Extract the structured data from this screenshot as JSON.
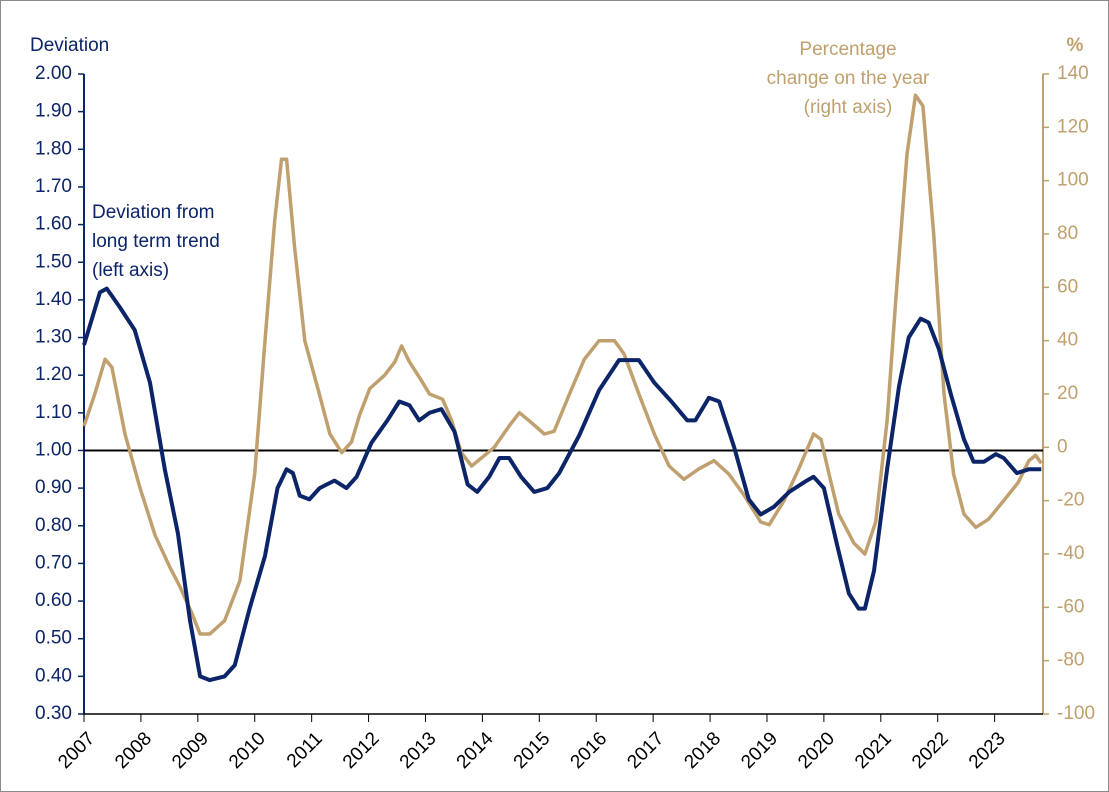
{
  "chart_data": {
    "type": "line",
    "ylabel": "Deviation",
    "y2label": "%",
    "annotations": [
      {
        "lines": [
          "Deviation from",
          "long term trend",
          "(left axis)"
        ],
        "color": "#0c2468"
      },
      {
        "lines": [
          "Percentage",
          "change on the year",
          "(right axis)"
        ],
        "color": "#bfa06e"
      }
    ],
    "xlim": [
      2007,
      2023.85
    ],
    "xticks": [
      2007,
      2008,
      2009,
      2010,
      2011,
      2012,
      2013,
      2014,
      2015,
      2016,
      2017,
      2018,
      2019,
      2020,
      2021,
      2022,
      2023
    ],
    "ylim": [
      0.3,
      2.0
    ],
    "yticks": [
      {
        "value": 0.3,
        "label": "0.30"
      },
      {
        "value": 0.4,
        "label": "0.40"
      },
      {
        "value": 0.5,
        "label": "0.50"
      },
      {
        "value": 0.6,
        "label": "0.60"
      },
      {
        "value": 0.7,
        "label": "0.70"
      },
      {
        "value": 0.8,
        "label": "0.80"
      },
      {
        "value": 0.9,
        "label": "0.90"
      },
      {
        "value": 1.0,
        "label": "1.00"
      },
      {
        "value": 1.1,
        "label": "1.10"
      },
      {
        "value": 1.2,
        "label": "1.20"
      },
      {
        "value": 1.3,
        "label": "1.30"
      },
      {
        "value": 1.4,
        "label": "1.40"
      },
      {
        "value": 1.5,
        "label": "1.50"
      },
      {
        "value": 1.6,
        "label": "1.60"
      },
      {
        "value": 1.7,
        "label": "1.70"
      },
      {
        "value": 1.8,
        "label": "1.80"
      },
      {
        "value": 1.9,
        "label": "1.90"
      },
      {
        "value": 2.0,
        "label": "2.00"
      }
    ],
    "y2lim": [
      -100,
      140
    ],
    "y2ticks": [
      -100,
      -80,
      -60,
      -40,
      -20,
      0,
      20,
      40,
      60,
      80,
      100,
      120,
      140
    ],
    "hline": 1.0,
    "series": [
      {
        "name": "Deviation from long term trend",
        "color": "#0c2468",
        "axis": "y",
        "x": [
          2007.0,
          2007.28,
          2007.4,
          2007.63,
          2007.89,
          2008.16,
          2008.42,
          2008.65,
          2008.86,
          2009.04,
          2009.21,
          2009.47,
          2009.65,
          2009.91,
          2010.18,
          2010.4,
          2010.56,
          2010.67,
          2010.79,
          2010.96,
          2011.14,
          2011.4,
          2011.61,
          2011.79,
          2012.05,
          2012.33,
          2012.54,
          2012.72,
          2012.89,
          2013.07,
          2013.28,
          2013.51,
          2013.74,
          2013.91,
          2014.12,
          2014.3,
          2014.47,
          2014.68,
          2014.91,
          2015.14,
          2015.35,
          2015.7,
          2016.05,
          2016.4,
          2016.75,
          2017.02,
          2017.32,
          2017.6,
          2017.74,
          2017.98,
          2018.16,
          2018.42,
          2018.68,
          2018.89,
          2019.12,
          2019.39,
          2019.7,
          2019.82,
          2020.0,
          2020.23,
          2020.44,
          2020.61,
          2020.72,
          2020.88,
          2021.11,
          2021.32,
          2021.49,
          2021.7,
          2021.84,
          2022.02,
          2022.23,
          2022.46,
          2022.63,
          2022.81,
          2023.02,
          2023.16,
          2023.39,
          2023.6,
          2023.82
        ],
        "values": [
          1.28,
          1.42,
          1.43,
          1.38,
          1.32,
          1.18,
          0.95,
          0.78,
          0.55,
          0.4,
          0.39,
          0.4,
          0.43,
          0.58,
          0.72,
          0.9,
          0.95,
          0.94,
          0.88,
          0.87,
          0.9,
          0.92,
          0.9,
          0.93,
          1.02,
          1.08,
          1.13,
          1.12,
          1.08,
          1.1,
          1.11,
          1.05,
          0.91,
          0.89,
          0.93,
          0.98,
          0.98,
          0.93,
          0.89,
          0.9,
          0.94,
          1.04,
          1.16,
          1.24,
          1.24,
          1.18,
          1.13,
          1.08,
          1.08,
          1.14,
          1.13,
          1.01,
          0.87,
          0.83,
          0.85,
          0.89,
          0.92,
          0.93,
          0.9,
          0.75,
          0.62,
          0.58,
          0.58,
          0.68,
          0.95,
          1.17,
          1.3,
          1.35,
          1.34,
          1.27,
          1.15,
          1.03,
          0.97,
          0.97,
          0.99,
          0.98,
          0.94,
          0.95,
          0.95
        ]
      },
      {
        "name": "Percentage change on the year",
        "color": "#bfa06e",
        "axis": "y2",
        "x": [
          2007.0,
          2007.19,
          2007.37,
          2007.49,
          2007.72,
          2007.98,
          2008.25,
          2008.51,
          2008.68,
          2008.89,
          2009.04,
          2009.21,
          2009.47,
          2009.74,
          2010.0,
          2010.18,
          2010.35,
          2010.47,
          2010.56,
          2010.7,
          2010.88,
          2011.11,
          2011.32,
          2011.53,
          2011.7,
          2011.84,
          2012.02,
          2012.28,
          2012.46,
          2012.58,
          2012.72,
          2012.93,
          2013.07,
          2013.3,
          2013.46,
          2013.63,
          2013.81,
          2014.04,
          2014.21,
          2014.47,
          2014.65,
          2014.82,
          2015.09,
          2015.26,
          2015.53,
          2015.79,
          2016.05,
          2016.32,
          2016.49,
          2016.75,
          2017.02,
          2017.28,
          2017.54,
          2017.81,
          2018.07,
          2018.33,
          2018.6,
          2018.89,
          2019.04,
          2019.3,
          2019.56,
          2019.82,
          2019.95,
          2020.09,
          2020.26,
          2020.53,
          2020.72,
          2020.91,
          2021.11,
          2021.28,
          2021.46,
          2021.61,
          2021.74,
          2021.93,
          2022.11,
          2022.28,
          2022.46,
          2022.67,
          2022.89,
          2023.16,
          2023.42,
          2023.6,
          2023.72,
          2023.82
        ],
        "values": [
          8,
          20,
          33,
          30,
          5,
          -15,
          -33,
          -45,
          -52,
          -62,
          -70,
          -70,
          -65,
          -50,
          -10,
          40,
          85,
          108,
          108,
          75,
          40,
          22,
          5,
          -2,
          2,
          12,
          22,
          27,
          32,
          38,
          32,
          25,
          20,
          18,
          10,
          -2,
          -7,
          -3,
          0,
          8,
          13,
          10,
          5,
          6,
          20,
          33,
          40,
          40,
          35,
          20,
          5,
          -7,
          -12,
          -8,
          -5,
          -10,
          -18,
          -28,
          -29,
          -20,
          -8,
          5,
          3,
          -10,
          -25,
          -36,
          -40,
          -28,
          10,
          60,
          110,
          132,
          128,
          80,
          20,
          -10,
          -25,
          -30,
          -27,
          -20,
          -13,
          -5,
          -3,
          -6
        ]
      }
    ]
  }
}
